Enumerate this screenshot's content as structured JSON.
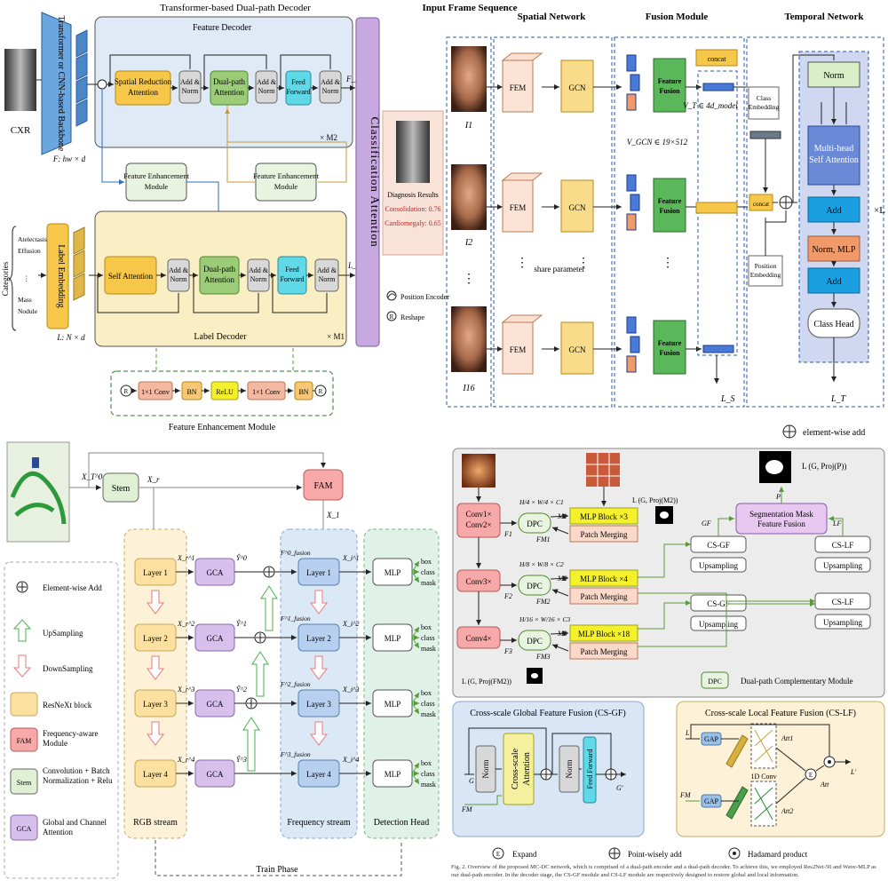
{
  "p1": {
    "title": "Transformer-based Dual-path Decoder",
    "backbone": "Transformer or CNN-based Backbone",
    "feature_decoder": "Feature Decoder",
    "label_decoder": "Label Decoder",
    "cxr": "CXR",
    "f_dim": "F: hw × d",
    "l_dim": "L: N × d",
    "srattn": "Spatial Reduction Attention",
    "addnorm": "Add & Norm",
    "dual_path": "Dual-path Attention",
    "ff": "Feed Forward",
    "self_attn": "Self Attention",
    "fd_out": "F_D",
    "ld_out": "L_D",
    "xm2": "× M2",
    "xm1": "× M1",
    "fem": "Feature Enhancement Module",
    "label_emb": "Label Embedding",
    "categories": "Categories",
    "cat_items": [
      "Atelectasis",
      "Effusion",
      "⋮",
      "Mass",
      "Nodule"
    ],
    "cls_attn": "Classification Attention",
    "diag": "Diagnosis Results",
    "diag1": "Consolidation: 0.76",
    "diag2": "Cardiomegaly: 0.65",
    "pos_enc": "Position Encoder",
    "reshape": "Reshape",
    "r": "R",
    "conv": "1×1 Conv",
    "bn": "BN",
    "relu": "ReLU",
    "fem_title": "Feature Enhancement Module"
  },
  "p2": {
    "h_input": "Input Frame Sequence",
    "h_spatial": "Spatial Network",
    "h_fusion": "Fusion Module",
    "h_temporal": "Temporal Network",
    "fem": "FEM",
    "gcn": "GCN",
    "ff": "Feature Fusion",
    "concat": "concat",
    "share": "share parameter",
    "vgcn": "V_GCN ∈ 19×512",
    "vt": "V_T ∈ 4d_model",
    "i1": "I1",
    "i2": "I2",
    "i16": "I16",
    "ls": "L_S",
    "lt": "L_T",
    "class_emb": "Class Embedding",
    "pos_emb": "Position Embedding",
    "norm": "Norm",
    "mhsa": "Multi-head Self Attention",
    "add": "Add",
    "norm_mlp": "Norm, MLP",
    "class_head": "Class Head",
    "xl": "×L",
    "ewadd": "element-wise add"
  },
  "p3": {
    "x0": "X_T^0",
    "stem": "Stem",
    "xr": "X_r",
    "fam": "FAM",
    "x1": "X_1",
    "layers": [
      "Layer 1",
      "Layer 2",
      "Layer 3",
      "Layer 4"
    ],
    "gca": "GCA",
    "mlp": "MLP",
    "heads": [
      "box",
      "class",
      "mask"
    ],
    "rgb": "RGB stream",
    "freq": "Frequency stream",
    "det": "Detection Head",
    "train": "Train Phase",
    "xr_labels": [
      "X_r^1",
      "X_r^2",
      "X_r^3",
      "X_r^4"
    ],
    "y_labels": [
      "Ŷ^0",
      "Ŷ^1",
      "Ŷ^2",
      "Ŷ^3"
    ],
    "f_labels": [
      "F^0_fusion",
      "F^1_fusion",
      "F^2_fusion",
      "F^3_fusion"
    ],
    "xi_labels": [
      "X_i^1",
      "X_i^2",
      "X_i^3",
      "X_i^4"
    ],
    "legend": {
      "ewadd": "Element-wise Add",
      "up": "UpSampling",
      "down": "DownSampling",
      "resnext": "ResNeXt block",
      "fam_k": "FAM",
      "fam": "Frequency-aware Module",
      "stem_k": "Stem",
      "stem": "Convolution + Batch Normalization + Relu",
      "gca_k": "GCA",
      "gca": "Global and Channel Attention"
    }
  },
  "p4": {
    "conv12": "Conv1× Conv2×",
    "conv3": "Conv3×",
    "conv4": "Conv4×",
    "dpc": "DPC",
    "mlp3": "MLP Block ×3",
    "mlp4": "MLP Block ×4",
    "mlp18": "MLP Block ×18",
    "pm": "Patch Merging",
    "csgf": "CS-GF",
    "cslf": "CS-LF",
    "ups": "Upsampling",
    "smff": "Segmentation Mask Feature Fusion",
    "gf": "GF",
    "lf": "LF",
    "p": "P",
    "loss_top": "L (G, Proj(P))",
    "loss_m2": "L (G, Proj(M2))",
    "loss_fm2": "L (G, Proj(FM2))",
    "dpc_legend": "Dual-path Complementary Module",
    "dim1": "H/4 × W/4 × C1",
    "dim2": "H/8 × W/8 × C2",
    "dim3": "H/16 × W/16 × C3",
    "f1": "F1",
    "f2": "F2",
    "f3": "F3",
    "fm1": "FM1",
    "fm2": "FM2",
    "fm3": "FM3",
    "m1": "M1",
    "m2": "M2",
    "m3": "M3",
    "csgf_title": "Cross-scale Global Feature Fusion (CS-GF)",
    "cslf_title": "Cross-scale Local Feature Fusion (CS-LF)",
    "norm": "Norm",
    "csa": "Cross-scale Attention",
    "ffwd": "Feed Forward",
    "gap": "GAP",
    "conv1d": "1D Conv",
    "att1": "Att1",
    "att2": "Att2",
    "att": "Att",
    "g": "G",
    "gp": "G'",
    "fm": "FM",
    "l": "L",
    "lp": "L'",
    "expand": "Expand",
    "pwadd": "Point-wisely add",
    "hadamard": "Hadamard product",
    "caption": "Fig. 2.  Overview of the proposed MC-DC network, which is comprised of a dual-path encoder and a dual-path decoder. To achieve this, we employed Res2Net-50 and Wave-MLP as our dual-path encoder. In the decoder stage, the CS-GF module and CS-LF module are respectively designed to restore global and local information."
  }
}
